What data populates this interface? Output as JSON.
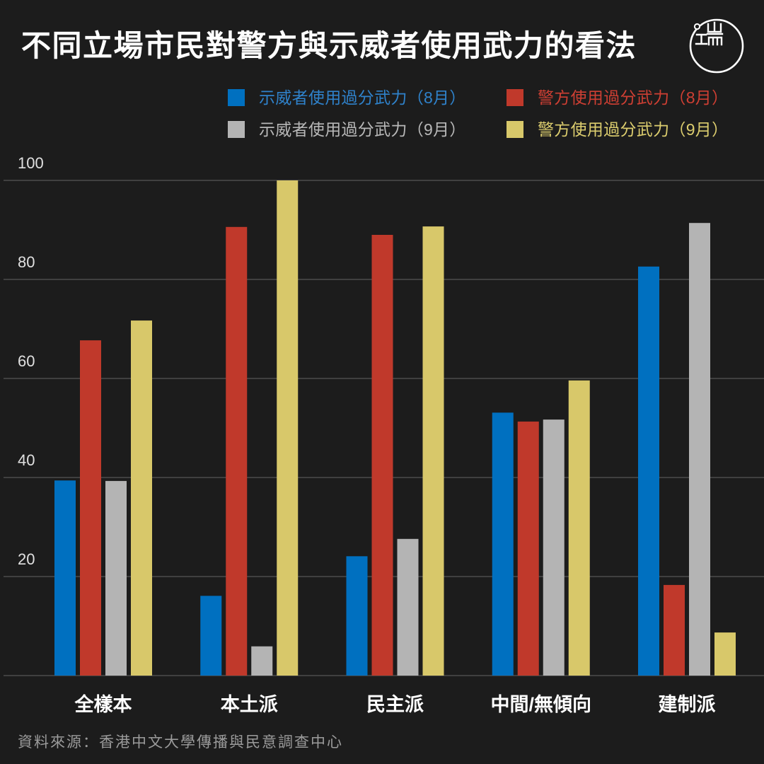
{
  "logo": {
    "icon": "initium-logo"
  },
  "source": "資料來源：香港中文大學傳播與民意調查中心",
  "colors": {
    "background": "#1c1c1c",
    "title": "#ffffff",
    "tick_label": "#e0e0e0",
    "category_label": "#ffffff",
    "gridline": "#565656",
    "source": "#9b9b9b"
  },
  "chart_data": {
    "type": "bar",
    "title": "不同立場市民對警方與示威者使用武力的看法",
    "categories": [
      "全樣本",
      "本土派",
      "民主派",
      "中間/無傾向",
      "建制派"
    ],
    "series": [
      {
        "name": "示威者使用過分武力（8月）",
        "color": "#0070c0",
        "legend_text_color": "#2f82cb",
        "values": [
          39.4,
          16.1,
          24.1,
          53.1,
          82.6
        ]
      },
      {
        "name": "警方使用過分武力（8月）",
        "color": "#c0392b",
        "legend_text_color": "#cf3f33",
        "values": [
          67.7,
          90.6,
          89.0,
          51.3,
          18.3
        ]
      },
      {
        "name": "示威者使用過分武力（9月）",
        "color": "#b4b4b4",
        "legend_text_color": "#b8b8b8",
        "values": [
          39.3,
          5.9,
          27.6,
          51.7,
          91.4
        ]
      },
      {
        "name": "警方使用過分武力（9月）",
        "color": "#d8c86a",
        "legend_text_color": "#dccd6e",
        "values": [
          71.7,
          100.0,
          90.7,
          59.6,
          8.7
        ]
      }
    ],
    "ylim": [
      0,
      100
    ],
    "yticks": [
      20,
      40,
      60,
      80,
      100
    ],
    "grid": true,
    "legend": "top-right"
  }
}
